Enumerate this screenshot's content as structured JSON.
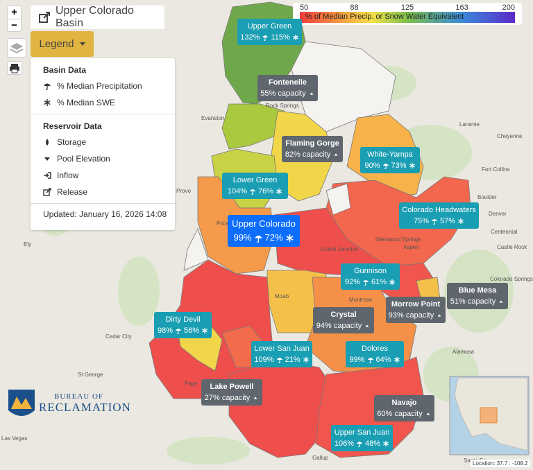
{
  "header": {
    "title": "Upper Colorado Basin"
  },
  "controls": {
    "zoom_in": "+",
    "zoom_out": "−",
    "legend_button": "Legend"
  },
  "legend": {
    "basin_heading": "Basin Data",
    "basin_items": [
      "% Median Precipitation",
      "% Median SWE"
    ],
    "reservoir_heading": "Reservoir Data",
    "reservoir_items": [
      "Storage",
      "Pool Elevation",
      "Inflow",
      "Release"
    ],
    "updated": "Updated: January 16, 2026 14:08"
  },
  "colorbar": {
    "ticks": [
      50,
      88,
      125,
      163,
      200
    ],
    "label": "% of Median Precip. or Snow Water Equivalent"
  },
  "basins": [
    {
      "name": "Upper Green",
      "precip": "132%",
      "swe": "115%"
    },
    {
      "name": "Lower Green",
      "precip": "104%",
      "swe": "76%"
    },
    {
      "name": "Upper Colorado",
      "precip": "99%",
      "swe": "72%"
    },
    {
      "name": "White-Yampa",
      "precip": "90%",
      "swe": "73%"
    },
    {
      "name": "Colorado Headwaters",
      "precip": "75%",
      "swe": "57%"
    },
    {
      "name": "Gunnison",
      "precip": "92%",
      "swe": "61%"
    },
    {
      "name": "Dirty Devil",
      "precip": "98%",
      "swe": "56%"
    },
    {
      "name": "Lower San Juan",
      "precip": "109%",
      "swe": "21%"
    },
    {
      "name": "Dolores",
      "precip": "99%",
      "swe": "64%"
    },
    {
      "name": "Upper San Juan",
      "precip": "106%",
      "swe": "48%"
    }
  ],
  "reservoirs": [
    {
      "name": "Fontenelle",
      "capacity": "55% capacity"
    },
    {
      "name": "Flaming Gorge",
      "capacity": "82% capacity"
    },
    {
      "name": "Blue Mesa",
      "capacity": "51% capacity"
    },
    {
      "name": "Crystal",
      "capacity": "94% capacity"
    },
    {
      "name": "Morrow Point",
      "capacity": "93% capacity"
    },
    {
      "name": "Lake Powell",
      "capacity": "27% capacity"
    },
    {
      "name": "Navajo",
      "capacity": "60% capacity"
    }
  ],
  "places": [
    "Rock Springs",
    "Evanston",
    "Laramie",
    "Cheyenne",
    "Fort Collins",
    "Boulder",
    "Denver",
    "Provo",
    "Price",
    "Centennial",
    "Castle Rock",
    "Ely",
    "Grand Junction",
    "Glenwood Springs",
    "Aspen",
    "Colorado Springs",
    "Moab",
    "Montrose",
    "Cedar City",
    "Alamosa",
    "St George",
    "Page",
    "Las Vegas",
    "Gallup",
    "Santa Fe"
  ],
  "logo": {
    "line1": "BUREAU OF",
    "line2": "RECLAMATION"
  },
  "location": "Location: 37.7 : -108.2"
}
